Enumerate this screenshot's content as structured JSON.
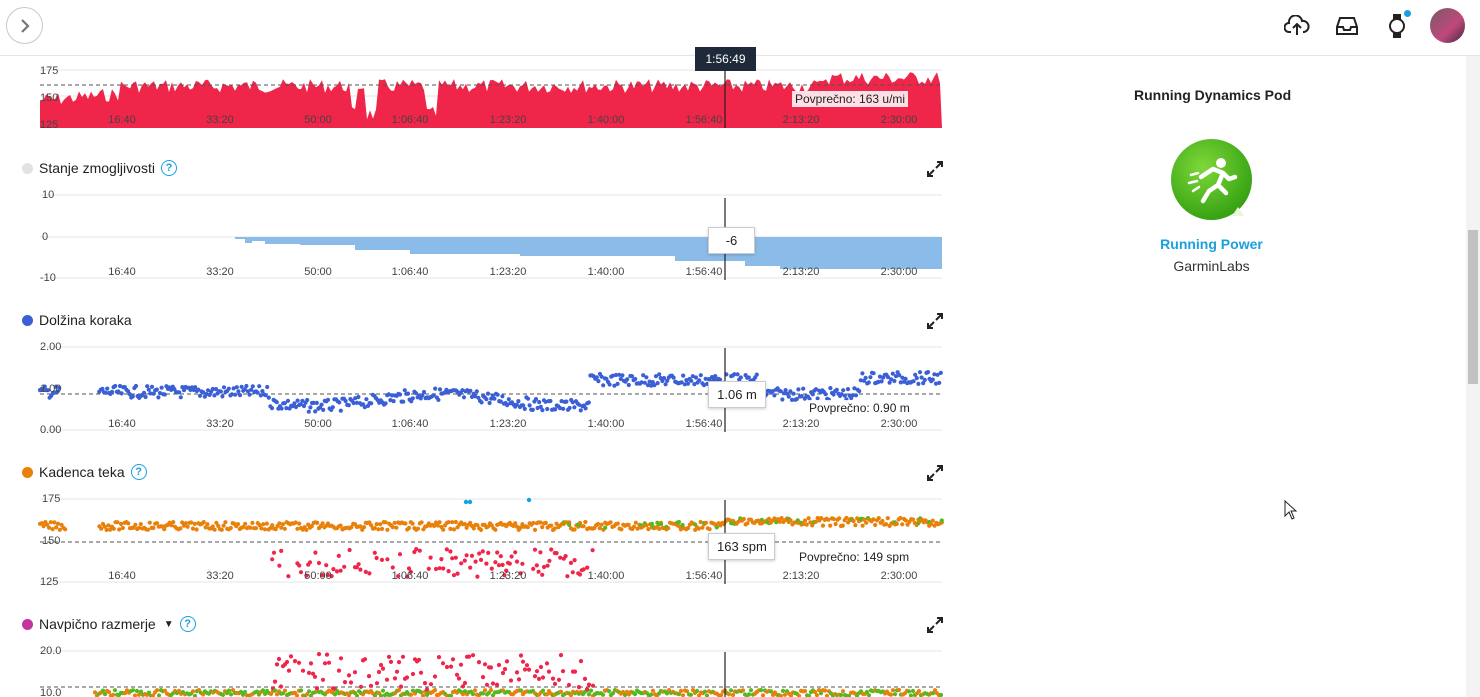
{
  "header": {
    "expand_icon": "chevron-right-icon",
    "icons": [
      "cloud-upload-icon",
      "inbox-icon",
      "watch-icon",
      "avatar"
    ]
  },
  "time_cursor": "1:56:49",
  "x_ticks": [
    "16:40",
    "33:20",
    "50:00",
    "1:06:40",
    "1:23:20",
    "1:40:00",
    "1:56:40",
    "2:13:20",
    "2:30:00"
  ],
  "charts": {
    "heart_rate_partial": {
      "y_ticks": [
        "175",
        "150",
        "125"
      ],
      "average_label": "Povprečno: 163 u/mi",
      "color": "#f0254a"
    },
    "performance_condition": {
      "title": "Stanje zmogljivosti",
      "dot_color": "#e2e2e2",
      "y_ticks": [
        "10",
        "0",
        "-10"
      ],
      "tooltip": "-6",
      "color": "#8bbce9"
    },
    "stride_length": {
      "title": "Dolžina koraka",
      "dot_color": "#3a5fd6",
      "y_ticks": [
        "2.00",
        "1.00",
        "0.00"
      ],
      "tooltip": "1.06 m",
      "average_label": "Povprečno: 0.90 m"
    },
    "cadence": {
      "title": "Kadenca teka",
      "dot_color": "#e8800a",
      "y_ticks": [
        "175",
        "150",
        "125"
      ],
      "tooltip": "163 spm",
      "average_label": "Povprečno: 149 spm"
    },
    "vertical_ratio": {
      "title": "Navpično razmerje",
      "dot_color": "#c0369e",
      "y_ticks": [
        "20.0",
        "10.0"
      ]
    }
  },
  "side_panel": {
    "title": "Running Dynamics Pod",
    "app_icon": "running-man-icon",
    "app_name": "Running Power",
    "app_developer": "GarminLabs"
  },
  "colors": {
    "accent": "#1a9fe0",
    "red": "#f0254a",
    "orange": "#e8800a",
    "green": "#53b91f",
    "blue": "#3a5fd6",
    "light_blue": "#8bbce9"
  }
}
